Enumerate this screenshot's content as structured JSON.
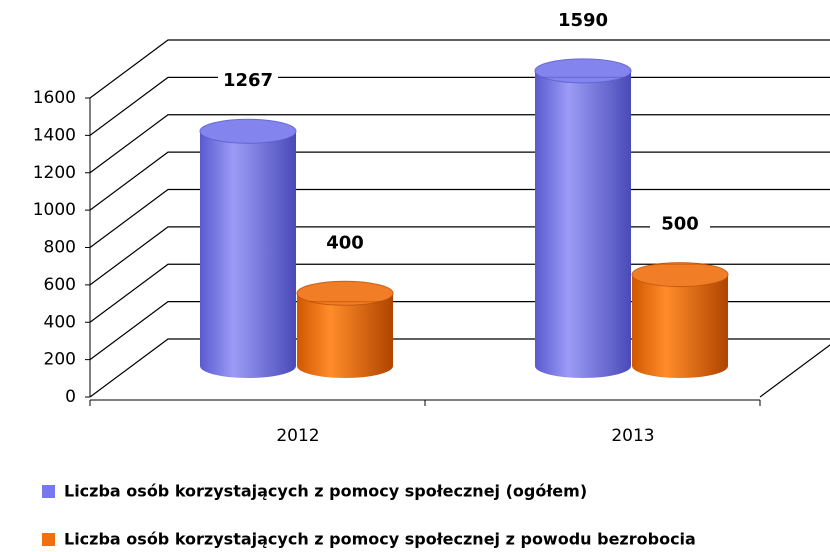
{
  "chart_data": {
    "type": "bar3d",
    "categories": [
      "2012",
      "2013"
    ],
    "series": [
      {
        "name": "Liczba osób korzystających z pomocy społecznej (ogółem)",
        "color": "#7777ee",
        "values": [
          1267,
          1590
        ]
      },
      {
        "name": "Liczba osób korzystających z pomocy społecznej z powodu bezrobocia",
        "color": "#f07010",
        "values": [
          400,
          500
        ]
      }
    ],
    "ylim": [
      0,
      1600
    ],
    "yticks": [
      0,
      200,
      400,
      600,
      800,
      1000,
      1200,
      1400,
      1600
    ],
    "grid": true
  }
}
